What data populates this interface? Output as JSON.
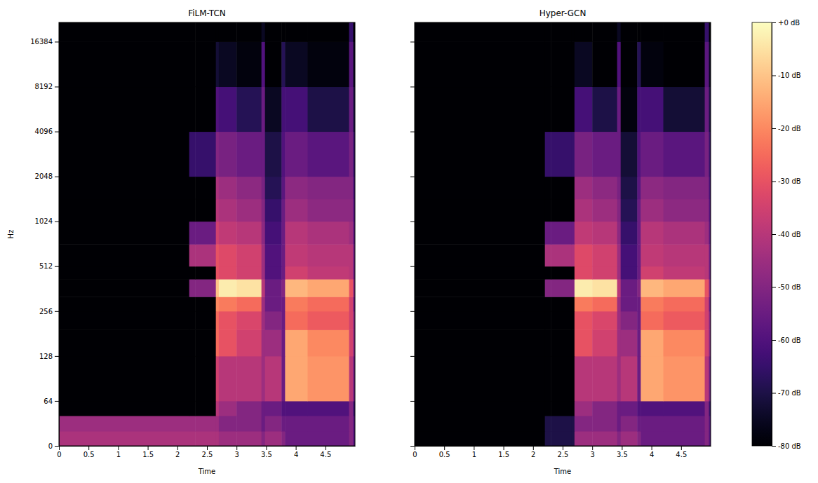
{
  "chart_data": [
    {
      "type": "heatmap",
      "title": "FiLM-TCN",
      "x_label": "Time",
      "y_label": "Hz",
      "log": "y",
      "xlim": [
        0,
        5.0
      ],
      "ylim": [
        0,
        22050
      ],
      "xticks": [
        0,
        0.5,
        1,
        1.5,
        2,
        2.5,
        3,
        3.5,
        4,
        4.5
      ],
      "yticks": [
        0,
        64,
        128,
        256,
        512,
        1024,
        2048,
        4096,
        8192,
        16384
      ],
      "x_edges": [
        0,
        2.2,
        2.3,
        2.65,
        2.7,
        3.0,
        3.42,
        3.48,
        3.76,
        3.82,
        4.2,
        4.9,
        4.97,
        5.0
      ],
      "y_edges": [
        0,
        21,
        43,
        64,
        128,
        192,
        256,
        320,
        420,
        512,
        720,
        1024,
        1448,
        2048,
        4096,
        8192,
        16384,
        22050
      ],
      "cells": [
        [
          -42,
          -42,
          -42,
          -42,
          -45,
          -45,
          -50,
          -45,
          -50,
          -55,
          -55,
          -50,
          -60
        ],
        [
          -45,
          -45,
          -45,
          -45,
          -50,
          -50,
          -55,
          -50,
          -55,
          -55,
          -55,
          -50,
          -60
        ],
        [
          -80,
          -80,
          -80,
          -40,
          -45,
          -50,
          -55,
          -55,
          -60,
          -60,
          -60,
          -50,
          -65
        ],
        [
          -80,
          -80,
          -80,
          -35,
          -40,
          -40,
          -45,
          -40,
          -55,
          -15,
          -18,
          -40,
          -55
        ],
        [
          -80,
          -80,
          -80,
          -25,
          -30,
          -35,
          -45,
          -45,
          -55,
          -15,
          -20,
          -35,
          -50
        ],
        [
          -80,
          -80,
          -80,
          -25,
          -30,
          -33,
          -45,
          -50,
          -55,
          -25,
          -28,
          -35,
          -50
        ],
        [
          -80,
          -80,
          -80,
          -20,
          -22,
          -25,
          -45,
          -55,
          -55,
          -22,
          -25,
          -35,
          -55
        ],
        [
          -80,
          -50,
          -50,
          -10,
          -3,
          -5,
          -40,
          -55,
          -50,
          -12,
          -15,
          -30,
          -50
        ],
        [
          -80,
          -80,
          -80,
          -30,
          -32,
          -35,
          -45,
          -60,
          -55,
          -35,
          -38,
          -40,
          -55
        ],
        [
          -80,
          -42,
          -42,
          -30,
          -32,
          -35,
          -45,
          -60,
          -55,
          -38,
          -40,
          -40,
          -55
        ],
        [
          -80,
          -55,
          -55,
          -35,
          -38,
          -40,
          -48,
          -62,
          -55,
          -40,
          -42,
          -45,
          -58
        ],
        [
          -80,
          -80,
          -80,
          -40,
          -42,
          -45,
          -50,
          -65,
          -55,
          -45,
          -48,
          -48,
          -60
        ],
        [
          -80,
          -80,
          -80,
          -42,
          -45,
          -48,
          -52,
          -68,
          -58,
          -48,
          -50,
          -50,
          -62
        ],
        [
          -80,
          -65,
          -65,
          -50,
          -52,
          -55,
          -55,
          -70,
          -60,
          -55,
          -58,
          -52,
          -65
        ],
        [
          -80,
          -80,
          -80,
          -60,
          -62,
          -68,
          -55,
          -75,
          -62,
          -62,
          -70,
          -55,
          -70
        ],
        [
          -80,
          -80,
          -80,
          -72,
          -75,
          -78,
          -60,
          -80,
          -68,
          -75,
          -78,
          -58,
          -75
        ],
        [
          -80,
          -80,
          -80,
          -80,
          -80,
          -80,
          -75,
          -80,
          -80,
          -80,
          -80,
          -65,
          -80
        ]
      ]
    },
    {
      "type": "heatmap",
      "title": "Hyper-GCN",
      "x_label": "Time",
      "log": "y",
      "tick_labels": "x",
      "xlim": [
        0,
        5.0
      ],
      "ylim": [
        0,
        22050
      ],
      "xticks": [
        0,
        0.5,
        1,
        1.5,
        2,
        2.5,
        3,
        3.5,
        4,
        4.5
      ],
      "yticks": [
        0,
        64,
        128,
        256,
        512,
        1024,
        2048,
        4096,
        8192,
        16384
      ],
      "x_edges": [
        0,
        2.2,
        2.3,
        2.65,
        2.7,
        3.0,
        3.42,
        3.48,
        3.76,
        3.82,
        4.2,
        4.9,
        4.97,
        5.0
      ],
      "y_edges": [
        0,
        21,
        43,
        64,
        128,
        192,
        256,
        320,
        420,
        512,
        720,
        1024,
        1448,
        2048,
        4096,
        8192,
        16384,
        22050
      ],
      "cells": [
        [
          -80,
          -70,
          -70,
          -70,
          -45,
          -45,
          -50,
          -45,
          -50,
          -55,
          -55,
          -50,
          -60
        ],
        [
          -80,
          -70,
          -70,
          -70,
          -50,
          -50,
          -55,
          -50,
          -55,
          -55,
          -55,
          -50,
          -60
        ],
        [
          -80,
          -80,
          -80,
          -80,
          -45,
          -50,
          -55,
          -55,
          -60,
          -60,
          -60,
          -50,
          -65
        ],
        [
          -80,
          -80,
          -80,
          -80,
          -40,
          -40,
          -45,
          -40,
          -55,
          -15,
          -18,
          -40,
          -55
        ],
        [
          -80,
          -80,
          -80,
          -80,
          -30,
          -35,
          -45,
          -45,
          -55,
          -15,
          -20,
          -35,
          -50
        ],
        [
          -80,
          -80,
          -80,
          -80,
          -30,
          -33,
          -45,
          -50,
          -55,
          -25,
          -28,
          -35,
          -50
        ],
        [
          -80,
          -80,
          -80,
          -80,
          -22,
          -25,
          -45,
          -55,
          -55,
          -22,
          -25,
          -35,
          -55
        ],
        [
          -80,
          -50,
          -50,
          -50,
          -3,
          -5,
          -40,
          -55,
          -50,
          -12,
          -15,
          -30,
          -50
        ],
        [
          -80,
          -80,
          -80,
          -80,
          -32,
          -35,
          -45,
          -62,
          -55,
          -35,
          -38,
          -40,
          -55
        ],
        [
          -80,
          -42,
          -42,
          -42,
          -32,
          -35,
          -45,
          -62,
          -55,
          -38,
          -40,
          -40,
          -55
        ],
        [
          -80,
          -55,
          -55,
          -55,
          -38,
          -40,
          -48,
          -65,
          -55,
          -40,
          -42,
          -45,
          -58
        ],
        [
          -80,
          -80,
          -80,
          -80,
          -42,
          -45,
          -50,
          -68,
          -55,
          -45,
          -48,
          -48,
          -60
        ],
        [
          -80,
          -80,
          -80,
          -80,
          -45,
          -48,
          -52,
          -70,
          -58,
          -48,
          -50,
          -50,
          -62
        ],
        [
          -80,
          -65,
          -65,
          -65,
          -52,
          -55,
          -55,
          -72,
          -60,
          -55,
          -58,
          -52,
          -65
        ],
        [
          -80,
          -80,
          -80,
          -80,
          -62,
          -70,
          -55,
          -78,
          -62,
          -62,
          -72,
          -55,
          -70
        ],
        [
          -80,
          -80,
          -80,
          -80,
          -75,
          -80,
          -60,
          -80,
          -68,
          -78,
          -80,
          -58,
          -75
        ],
        [
          -80,
          -80,
          -80,
          -80,
          -80,
          -80,
          -75,
          -80,
          -80,
          -80,
          -80,
          -65,
          -80
        ]
      ],
      "colorbar": {
        "range": [
          -80,
          0
        ],
        "ticks": [
          {
            "value": 0,
            "label": "+0 dB"
          },
          {
            "value": -10,
            "label": "-10 dB"
          },
          {
            "value": -20,
            "label": "-20 dB"
          },
          {
            "value": -30,
            "label": "-30 dB"
          },
          {
            "value": -40,
            "label": "-40 dB"
          },
          {
            "value": -50,
            "label": "-50 dB"
          },
          {
            "value": -60,
            "label": "-60 dB"
          },
          {
            "value": -70,
            "label": "-70 dB"
          },
          {
            "value": -80,
            "label": "-80 dB"
          }
        ]
      }
    }
  ]
}
